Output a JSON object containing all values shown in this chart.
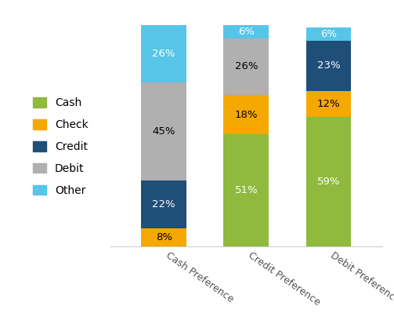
{
  "categories": [
    "Cash Preference",
    "Credit Preference",
    "Debit Preference"
  ],
  "series_adjusted": {
    "Cash": [
      0,
      51,
      59
    ],
    "Check": [
      8,
      18,
      12
    ],
    "Credit": [
      22,
      0,
      23
    ],
    "Debit": [
      45,
      26,
      0
    ],
    "Other": [
      26,
      6,
      6
    ]
  },
  "labels_adjusted": {
    "Cash": [
      "",
      "51%",
      "59%"
    ],
    "Check": [
      "8%",
      "18%",
      "12%"
    ],
    "Credit": [
      "22%",
      "",
      "23%"
    ],
    "Debit": [
      "45%",
      "26%",
      ""
    ],
    "Other": [
      "26%",
      "6%",
      "6%"
    ]
  },
  "colors": {
    "Cash": "#8fba3e",
    "Check": "#f5a800",
    "Credit": "#1f4e79",
    "Debit": "#b0b0b0",
    "Other": "#56c5e8"
  },
  "white_text": [
    "Credit",
    "Cash",
    "Other"
  ],
  "black_text": [
    "Check",
    "Debit"
  ],
  "stack_order": [
    "Cash",
    "Check",
    "Credit",
    "Debit",
    "Other"
  ],
  "legend_order": [
    "Cash",
    "Check",
    "Credit",
    "Debit",
    "Other"
  ],
  "bar_width": 0.55,
  "ylim": [
    0,
    108
  ],
  "background_color": "#ffffff",
  "label_fontsize": 9.5,
  "legend_fontsize": 10,
  "tick_fontsize": 9
}
